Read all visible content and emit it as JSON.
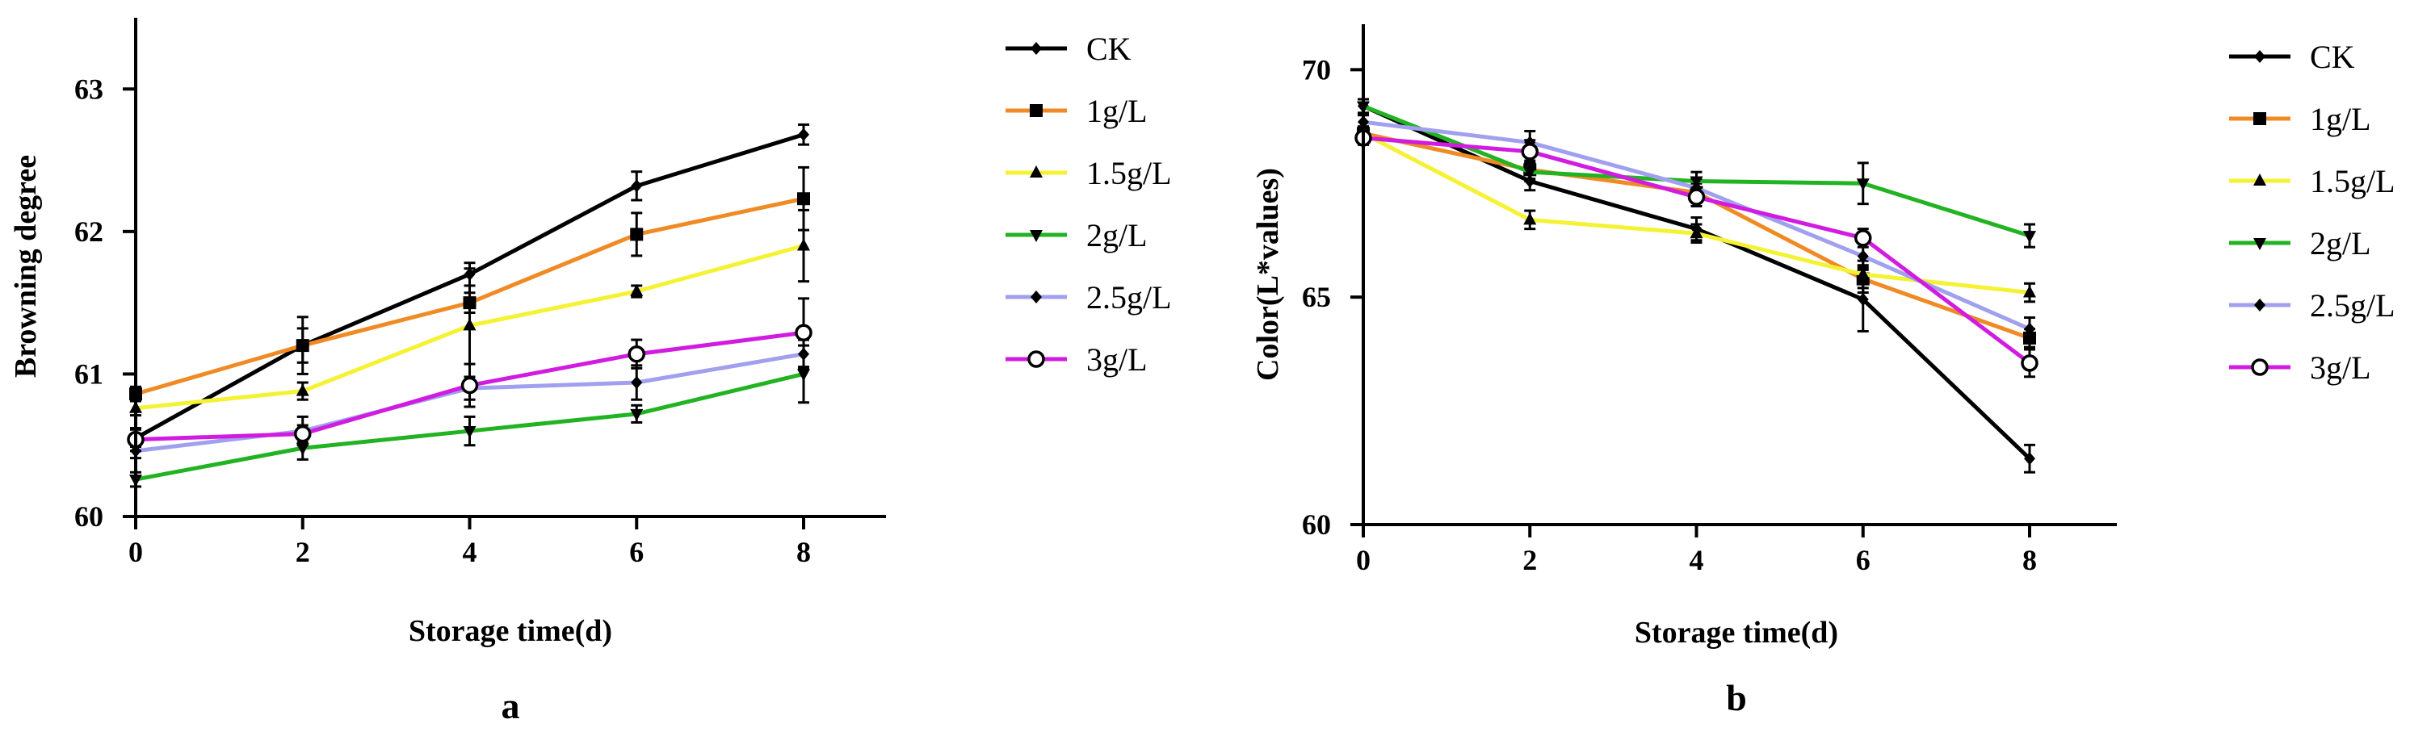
{
  "chart_data": [
    {
      "type": "line",
      "panel_label": "a",
      "xlabel": "Storage time(d)",
      "ylabel": "Browning degree",
      "x": [
        0,
        2,
        4,
        6,
        8
      ],
      "xticks": [
        0,
        2,
        4,
        6,
        8
      ],
      "xlim": [
        0,
        9
      ],
      "ylim": [
        60,
        63.5
      ],
      "yticks": [
        60,
        61,
        62,
        63
      ],
      "legend_position": "right",
      "series": [
        {
          "name": "CK",
          "color": "#000000",
          "marker": "diamond",
          "values": [
            60.55,
            61.2,
            61.7,
            62.32,
            62.68
          ],
          "errors": [
            0.06,
            0.2,
            0.08,
            0.1,
            0.07
          ]
        },
        {
          "name": "1g/L",
          "color": "#f08a24",
          "marker": "square",
          "values": [
            60.86,
            61.2,
            61.5,
            61.98,
            62.23
          ],
          "errors": [
            0.05,
            0.12,
            0.07,
            0.15,
            0.22
          ]
        },
        {
          "name": "1.5g/L",
          "color": "#f4f232",
          "marker": "triangle",
          "values": [
            60.76,
            60.88,
            61.34,
            61.58,
            61.9
          ],
          "errors": [
            0.05,
            0.06,
            0.4,
            0.04,
            0.25
          ]
        },
        {
          "name": "2g/L",
          "color": "#22b322",
          "marker": "triangle-down",
          "values": [
            60.26,
            60.48,
            60.6,
            60.72,
            61.0
          ],
          "errors": [
            0.05,
            0.08,
            0.1,
            0.06,
            0.2
          ]
        },
        {
          "name": "2.5g/L",
          "color": "#a0a0ee",
          "marker": "diamond",
          "values": [
            60.46,
            60.6,
            60.9,
            60.94,
            61.14
          ],
          "errors": [
            0.05,
            0.1,
            0.08,
            0.12,
            0.1
          ]
        },
        {
          "name": "3g/L",
          "color": "#d11be0",
          "marker": "circle",
          "values": [
            60.54,
            60.58,
            60.92,
            61.14,
            61.29
          ],
          "errors": [
            0.08,
            0.06,
            0.15,
            0.1,
            0.24
          ]
        }
      ]
    },
    {
      "type": "line",
      "panel_label": "b",
      "xlabel": "Storage time(d)",
      "ylabel": "Color(L*values)",
      "x": [
        0,
        2,
        4,
        6,
        8
      ],
      "xticks": [
        0,
        2,
        4,
        6,
        8
      ],
      "xlim": [
        0,
        9
      ],
      "ylim": [
        60,
        71
      ],
      "yticks": [
        60,
        65,
        70
      ],
      "legend_position": "right",
      "series": [
        {
          "name": "CK",
          "color": "#000000",
          "marker": "diamond",
          "values": [
            69.2,
            67.55,
            66.5,
            64.95,
            61.45
          ],
          "errors": [
            0.15,
            0.2,
            0.25,
            0.7,
            0.3
          ]
        },
        {
          "name": "1g/L",
          "color": "#f08a24",
          "marker": "square",
          "values": [
            68.6,
            67.8,
            67.3,
            65.4,
            64.1
          ],
          "errors": [
            0.15,
            0.2,
            0.2,
            0.3,
            0.2
          ]
        },
        {
          "name": "1.5g/L",
          "color": "#f4f232",
          "marker": "triangle",
          "values": [
            68.6,
            66.7,
            66.4,
            65.5,
            65.1
          ],
          "errors": [
            0.15,
            0.2,
            0.2,
            0.3,
            0.2
          ]
        },
        {
          "name": "2g/L",
          "color": "#22b322",
          "marker": "triangle-down",
          "values": [
            69.2,
            67.75,
            67.55,
            67.5,
            66.35
          ],
          "errors": [
            0.15,
            0.2,
            0.2,
            0.45,
            0.25
          ]
        },
        {
          "name": "2.5g/L",
          "color": "#a0a0ee",
          "marker": "diamond",
          "values": [
            68.85,
            68.4,
            67.4,
            65.9,
            64.3
          ],
          "errors": [
            0.15,
            0.25,
            0.2,
            0.3,
            0.25
          ]
        },
        {
          "name": "3g/L",
          "color": "#d11be0",
          "marker": "circle",
          "values": [
            68.5,
            68.2,
            67.2,
            66.3,
            63.55
          ],
          "errors": [
            0.15,
            0.25,
            0.2,
            0.2,
            0.3
          ]
        }
      ]
    }
  ]
}
